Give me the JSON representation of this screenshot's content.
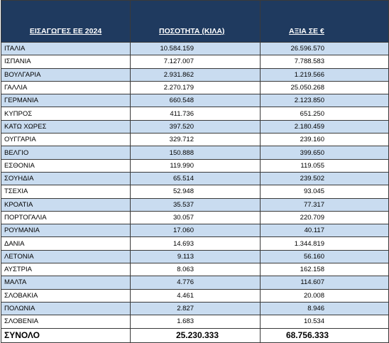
{
  "table": {
    "header": [
      "ΕΙΣΑΓΩΓΕΣ ΕΕ 2024",
      "ΠΟΣΟΤΗΤΑ (ΚΙΛΑ)",
      "ΑΞΙΑ ΣΕ €"
    ],
    "rows": [
      [
        "ΙΤΑΛΙΑ",
        "10.584.159",
        "26.596.570"
      ],
      [
        "ΙΣΠΑΝΙΑ",
        "7.127.007",
        "7.788.583"
      ],
      [
        "ΒΟΥΛΓΑΡΙΑ",
        "2.931.862",
        "1.219.566"
      ],
      [
        "ΓΑΛΛΙΑ",
        "2.270.179",
        "25.050.268"
      ],
      [
        "ΓΕΡΜΑΝΙΑ",
        "660.548",
        "2.123.850"
      ],
      [
        "ΚΥΠΡΟΣ",
        "411.736",
        "651.250"
      ],
      [
        "ΚΑΤΩ ΧΩΡΕΣ",
        "397.520",
        "2.180.459"
      ],
      [
        "ΟΥΓΓΑΡΙΑ",
        "329.712",
        "239.160"
      ],
      [
        "ΒΕΛΓΙΟ",
        "150.888",
        "399.650"
      ],
      [
        "ΕΣΘΟΝΙΑ",
        "119.990",
        "119.055"
      ],
      [
        "ΣΟΥΗΔΙΑ",
        "65.514",
        "239.502"
      ],
      [
        "ΤΣΕΧΙΑ",
        "52.948",
        "93.045"
      ],
      [
        "ΚΡΟΑΤΙΑ",
        "35.537",
        "77.317"
      ],
      [
        "ΠΟΡΤΟΓΑΛΙΑ",
        "30.057",
        "220.709"
      ],
      [
        "ΡΟΥΜΑΝΙΑ",
        "17.060",
        "40.117"
      ],
      [
        "ΔΑΝΙΑ",
        "14.693",
        "1.344.819"
      ],
      [
        "ΛΕΤΟΝΙΑ",
        "9.113",
        "56.160"
      ],
      [
        "ΑΥΣΤΡΙΑ",
        "8.063",
        "162.158"
      ],
      [
        "ΜΑΛΤΑ",
        "4.776",
        "114.607"
      ],
      [
        "ΣΛΟΒΑΚΙΑ",
        "4.461",
        "20.008"
      ],
      [
        "ΠΟΛΩΝΙΑ",
        "2.827",
        "8.946"
      ],
      [
        "ΣΛΟΒΕΝΙΑ",
        "1.683",
        "10.534"
      ]
    ],
    "total": [
      "ΣΥΝΟΛΟ",
      "25.230.333",
      "68.756.333"
    ]
  }
}
